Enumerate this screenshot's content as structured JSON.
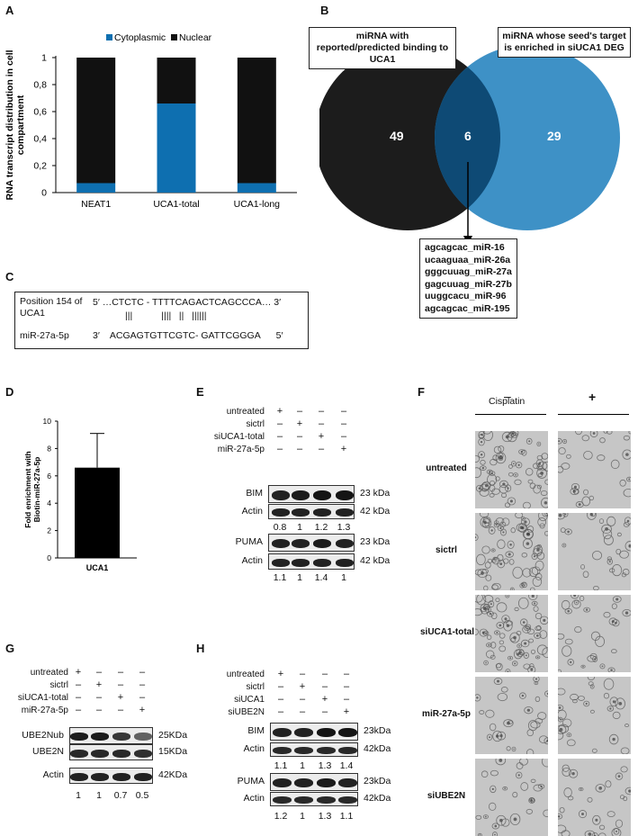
{
  "panel_labels": {
    "a": "A",
    "b": "B",
    "c": "C",
    "d": "D",
    "e": "E",
    "f": "F",
    "g": "G",
    "h": "H"
  },
  "panel_a": {
    "chart_data": {
      "type": "bar",
      "stacked": true,
      "categories": [
        "NEAT1",
        "UCA1-total",
        "UCA1-long"
      ],
      "series": [
        {
          "name": "Cytoplasmic",
          "color": "#0e6fb0",
          "values": [
            0.07,
            0.66,
            0.07
          ]
        },
        {
          "name": "Nuclear",
          "color": "#111111",
          "values": [
            0.93,
            0.34,
            0.93
          ]
        }
      ],
      "ylabel": "RNA transcript distribution in cell compartment",
      "ylim": [
        0,
        1
      ],
      "yticks": [
        "0",
        "0,2",
        "0,4",
        "0,6",
        "0,8",
        "1"
      ],
      "legend": "top"
    }
  },
  "panel_b": {
    "left_title": "miRNA with reported/predicted binding to UCA1",
    "right_title": "miRNA whose seed's target is enriched in siUCA1 DEG",
    "left_only": "49",
    "overlap": "6",
    "right_only": "29",
    "left_color": "#1c1c1c",
    "right_color": "#3e91c6",
    "overlap_color": "#0e4a75",
    "overlap_list": [
      "agcagcac_miR-16",
      "ucaaguaa_miR-26a",
      "gggcuuag_miR-27a",
      "gagcuuag_miR-27b",
      "uuggcacu_miR-96",
      "agcagcac_miR-195"
    ]
  },
  "panel_c": {
    "top_label": "Position 154 of UCA1",
    "top_seq": "5′ …CTCTC - TTTTCAGACTCAGCCCA… 3′",
    "pairs": "|||           ||||   ||   ||||||",
    "bottom_label": "miR-27a-5p",
    "bottom_seq": "3′    ACGAGTGTTCGTC- GATTCGGGA      5′"
  },
  "panel_d": {
    "chart_data": {
      "type": "bar",
      "categories": [
        "UCA1"
      ],
      "values": [
        6.6
      ],
      "error": [
        2.5
      ],
      "ylabel": "Fold enrichment with Biotin-miR-27a-5p",
      "ylim": [
        0,
        10
      ],
      "yticks": [
        "0",
        "2",
        "4",
        "6",
        "8",
        "10"
      ]
    }
  },
  "panel_e": {
    "conditions": [
      "untreated",
      "sictrl",
      "siUCA1-total",
      "miR-27a-5p"
    ],
    "signs": [
      [
        "+",
        "–",
        "–",
        "–"
      ],
      [
        "–",
        "+",
        "–",
        "–"
      ],
      [
        "–",
        "–",
        "+",
        "–"
      ],
      [
        "–",
        "–",
        "–",
        "+"
      ]
    ],
    "blots": [
      {
        "name": "BIM",
        "size": "23 kDa"
      },
      {
        "name": "Actin",
        "size": "42 kDa"
      },
      {
        "name": "PUMA",
        "size": "23 kDa"
      },
      {
        "name": "Actin",
        "size": "42 kDa"
      }
    ],
    "quant_bim": [
      "0.8",
      "1",
      "1.2",
      "1.3"
    ],
    "quant_puma": [
      "1.1",
      "1",
      "1.4",
      "1"
    ]
  },
  "panel_f": {
    "column_header": "Cisplatin",
    "columns": [
      "–",
      "+"
    ],
    "rows": [
      "untreated",
      "sictrl",
      "siUCA1-total",
      "miR-27a-5p",
      "siUBE2N"
    ]
  },
  "panel_g": {
    "conditions": [
      "untreated",
      "sictrl",
      "siUCA1-total",
      "miR-27a-5p"
    ],
    "signs": [
      [
        "+",
        "–",
        "–",
        "–"
      ],
      [
        "–",
        "+",
        "–",
        "–"
      ],
      [
        "–",
        "–",
        "+",
        "–"
      ],
      [
        "–",
        "–",
        "–",
        "+"
      ]
    ],
    "blots": [
      {
        "name": "UBE2Nub",
        "size": "25KDa"
      },
      {
        "name": "UBE2N",
        "size": "15KDa"
      },
      {
        "name": "Actin",
        "size": "42KDa"
      }
    ],
    "quant": [
      "1",
      "1",
      "0.7",
      "0.5"
    ]
  },
  "panel_h": {
    "conditions": [
      "untreated",
      "sictrl",
      "siUCA1",
      "siUBE2N"
    ],
    "signs": [
      [
        "+",
        "–",
        "–",
        "–"
      ],
      [
        "–",
        "+",
        "–",
        "–"
      ],
      [
        "–",
        "–",
        "+",
        "–"
      ],
      [
        "–",
        "–",
        "–",
        "+"
      ]
    ],
    "blots": [
      {
        "name": "BIM",
        "size": "23kDa"
      },
      {
        "name": "Actin",
        "size": "42kDa"
      },
      {
        "name": "PUMA",
        "size": "23kDa"
      },
      {
        "name": "Actin",
        "size": "42kDa"
      }
    ],
    "quant_bim": [
      "1.1",
      "1",
      "1.3",
      "1.4"
    ],
    "quant_puma": [
      "1.2",
      "1",
      "1.3",
      "1.1"
    ]
  }
}
